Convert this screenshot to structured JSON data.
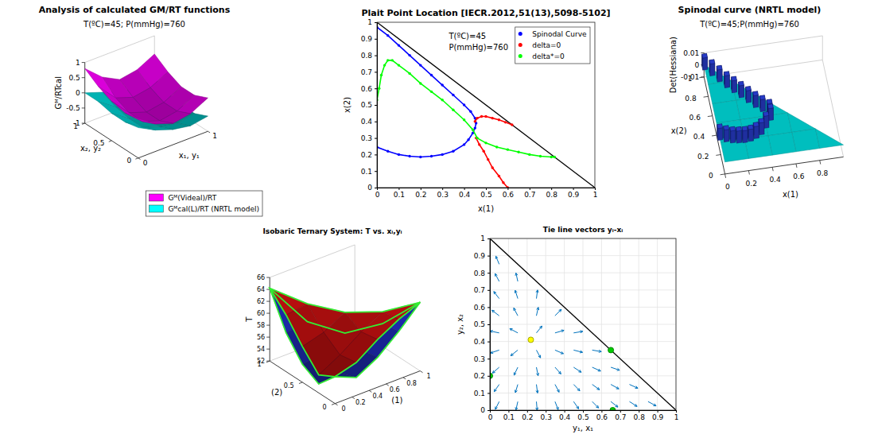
{
  "chart_data": [
    {
      "type": "surface3d",
      "title": "Analysis of calculated GM/RT functions",
      "annotations": [
        "T(ºC)=45; P(mmHg)=760"
      ],
      "x_label": "x₁, y₁",
      "y_label": "x₂, y₂",
      "z_label": "Gᴹ/RTcal",
      "x": [
        0,
        0.25,
        0.5,
        0.75,
        1
      ],
      "y": [
        0,
        0.25,
        0.5,
        0.75,
        1
      ],
      "xlim": [
        0,
        1
      ],
      "ylim": [
        0,
        1
      ],
      "zlim": [
        -1,
        1
      ],
      "xticks": [
        0,
        1
      ],
      "yticks": [
        0,
        0.5,
        1
      ],
      "zticks": [
        -1,
        -0.5,
        0,
        0.5,
        1
      ],
      "legend": "lower right",
      "series": [
        {
          "name": "Gᴹ(Videal)/RT",
          "color": "#ff00ff",
          "z": [
            [
              0.3,
              -0.1,
              -0.3,
              -0.2,
              0.1
            ],
            [
              0.2,
              -0.3,
              -0.5,
              -0.4,
              -0.1
            ],
            [
              0.3,
              -0.3,
              -0.5,
              -0.4,
              -0.1
            ],
            [
              0.5,
              -0.1,
              -0.3,
              -0.2,
              0.1
            ],
            [
              0.8,
              0.3,
              0.0,
              0.1,
              0.4
            ]
          ]
        },
        {
          "name": "Gᴹcal(L)/RT (NRTL model)",
          "color": "#00ffff",
          "z": [
            [
              0.0,
              -0.3,
              -0.5,
              -0.6,
              -0.5
            ],
            [
              -0.1,
              -0.5,
              -0.7,
              -0.8,
              -0.7
            ],
            [
              -0.1,
              -0.5,
              -0.7,
              -0.8,
              -0.7
            ],
            [
              0.0,
              -0.4,
              -0.6,
              -0.7,
              -0.6
            ],
            [
              0.0,
              -0.2,
              -0.4,
              -0.5,
              -0.4
            ]
          ]
        }
      ]
    },
    {
      "type": "scatter",
      "title": "Plait Point Location [IECR.2012,51(13),5098-5102]",
      "annotations": [
        "T(ºC)=45",
        "P(mmHg)=760"
      ],
      "x_label": "x(1)",
      "y_label": "x(2)",
      "xlim": [
        0,
        1
      ],
      "ylim": [
        0,
        1
      ],
      "xticks": [
        0,
        0.1,
        0.2,
        0.3,
        0.4,
        0.5,
        0.6,
        0.7,
        0.8,
        0.9,
        1
      ],
      "yticks": [
        0,
        0.1,
        0.2,
        0.3,
        0.4,
        0.5,
        0.6,
        0.7,
        0.8,
        0.9,
        1
      ],
      "legend": "upper right",
      "marker": "point",
      "line_style": "solid",
      "boundary": {
        "x": [
          0,
          1
        ],
        "y": [
          1,
          0
        ],
        "color": "#000000",
        "line_style": "solid"
      },
      "series": [
        {
          "name": "Spinodal Curve",
          "color": "#0000ff",
          "x": [
            0,
            0.05,
            0.1,
            0.15,
            0.2,
            0.25,
            0.3,
            0.35,
            0.4,
            0.43,
            0.45,
            0.455,
            0.45,
            0.44,
            0.42,
            0.4,
            0.35,
            0.3,
            0.25,
            0.2,
            0.15,
            0.1,
            0.05,
            0
          ],
          "y": [
            0.97,
            0.92,
            0.86,
            0.8,
            0.74,
            0.68,
            0.62,
            0.56,
            0.5,
            0.46,
            0.42,
            0.39,
            0.36,
            0.33,
            0.29,
            0.26,
            0.22,
            0.2,
            0.19,
            0.185,
            0.19,
            0.2,
            0.22,
            0.245
          ]
        },
        {
          "name": "delta=0",
          "color": "#ff0000",
          "x": [
            0.45,
            0.46,
            0.48,
            0.5,
            0.53,
            0.56,
            0.59,
            0.62,
            null,
            0.455,
            0.47,
            0.49,
            0.51,
            0.53,
            0.56,
            0.58,
            0.6
          ],
          "y": [
            0.4,
            0.42,
            0.43,
            0.43,
            0.42,
            0.41,
            0.395,
            0.38,
            null,
            0.3,
            0.26,
            0.22,
            0.17,
            0.12,
            0.07,
            0.03,
            0
          ]
        },
        {
          "name": "delta*=0",
          "color": "#00ff00",
          "x": [
            0,
            0.01,
            0.02,
            0.035,
            0.05,
            0.07,
            0.1,
            0.15,
            0.2,
            0.25,
            0.3,
            0.35,
            0.4,
            0.44,
            0.46,
            0.5,
            0.55,
            0.6,
            0.65,
            0.7,
            0.75,
            0.8,
            0.815
          ],
          "y": [
            0.53,
            0.6,
            0.68,
            0.74,
            0.77,
            0.77,
            0.74,
            0.69,
            0.63,
            0.58,
            0.53,
            0.47,
            0.41,
            0.35,
            0.3,
            0.27,
            0.245,
            0.23,
            0.215,
            0.2,
            0.19,
            0.185,
            0.185
          ]
        }
      ]
    },
    {
      "type": "bar3d",
      "title": "Spinodal curve (NRTL model)",
      "annotations": [
        "T(ºC)=45;P(mmHg)=760"
      ],
      "x_label": "x(1)",
      "y_label": "x(2)",
      "z_label": "Det(Hessiana)",
      "xlim": [
        0,
        1
      ],
      "ylim": [
        0,
        1
      ],
      "zlim": [
        -0.01,
        0.01
      ],
      "xticks": [
        0,
        0.2,
        0.4,
        0.6,
        0.8
      ],
      "yticks": [
        0,
        0.2,
        0.4,
        0.6,
        0.8,
        1
      ],
      "zticks": [
        -0.01,
        0,
        0.01
      ],
      "series": [
        {
          "type": "surface",
          "color": "#00ffff",
          "x": [
            0,
            0.2,
            0.4,
            0.6,
            0.8,
            1
          ],
          "y": [
            0,
            0.2,
            0.4,
            0.6,
            0.8,
            1
          ],
          "z": [
            [
              0,
              0,
              0,
              0,
              0,
              0
            ],
            [
              0,
              0,
              0,
              0,
              0,
              null
            ],
            [
              0,
              0,
              0,
              0,
              null,
              null
            ],
            [
              0,
              0,
              0,
              null,
              null,
              null
            ],
            [
              0,
              0,
              null,
              null,
              null,
              null
            ],
            [
              0,
              null,
              null,
              null,
              null,
              null
            ]
          ]
        },
        {
          "type": "bar",
          "color": "#1f2f9f",
          "x": [
            0,
            0.05,
            0.1,
            0.15,
            0.2,
            0.25,
            0.3,
            0.35,
            0.4,
            0.45,
            0.45,
            0.4,
            0.35,
            0.3,
            0.25,
            0.2,
            0.15,
            0.1,
            0.05,
            0
          ],
          "y": [
            0.97,
            0.9,
            0.83,
            0.76,
            0.7,
            0.64,
            0.58,
            0.52,
            0.47,
            0.42,
            0.37,
            0.3,
            0.24,
            0.21,
            0.19,
            0.185,
            0.19,
            0.2,
            0.22,
            0.245
          ],
          "values": [
            0.01,
            0.01,
            0.01,
            0.01,
            0.01,
            0.01,
            0.01,
            0.01,
            0.01,
            0.01,
            0.01,
            0.01,
            0.01,
            0.01,
            0.01,
            0.01,
            0.01,
            0.01,
            0.01,
            0.01
          ]
        }
      ]
    },
    {
      "type": "surface3d",
      "title": "Isobaric Ternary System: T vs. xᵢ,yᵢ",
      "x_label": "(1)",
      "y_label": "(2)",
      "z_label": "T",
      "x": [
        0,
        0.25,
        0.5,
        0.75,
        1
      ],
      "y": [
        0,
        0.25,
        0.5,
        0.75,
        1
      ],
      "xlim": [
        0,
        1
      ],
      "ylim": [
        0,
        1
      ],
      "zlim": [
        52,
        66
      ],
      "xticks": [
        0,
        0.2,
        0.4,
        0.6,
        0.8,
        1
      ],
      "yticks": [
        0,
        0.5,
        1
      ],
      "zticks": [
        52,
        54,
        56,
        58,
        60,
        62,
        64,
        66
      ],
      "series": [
        {
          "color": "#cc1111",
          "z": [
            [
              56.5,
              57.5,
              60,
              62,
              63.5
            ],
            [
              55,
              57,
              59.5,
              61.5,
              null
            ],
            [
              58,
              59,
              61,
              null,
              null
            ],
            [
              61.5,
              62,
              null,
              null,
              null
            ],
            [
              64.2,
              null,
              null,
              null,
              null
            ]
          ]
        },
        {
          "color": "#2233cc",
          "z": [
            [
              56.5,
              55,
              57,
              60,
              63.5
            ],
            [
              53.5,
              54,
              56.5,
              59.5,
              null
            ],
            [
              55,
              55.5,
              57.5,
              null,
              null
            ],
            [
              58.5,
              59,
              null,
              null,
              null
            ],
            [
              64.2,
              null,
              null,
              null,
              null
            ]
          ]
        },
        {
          "type": "line",
          "color": "#33ee33",
          "x": [
            0,
            0.25,
            0.5,
            0.75,
            1,
            0.75,
            0.5,
            0.25,
            0,
            0,
            0,
            0,
            0
          ],
          "y": [
            0,
            0,
            0,
            0,
            0,
            0.25,
            0.5,
            0.75,
            1,
            0.75,
            0.5,
            0.25,
            0
          ],
          "z": [
            56.5,
            55,
            57,
            60,
            63.5,
            59.5,
            57.5,
            59,
            64.2,
            58.5,
            55,
            53.5,
            56.5
          ]
        },
        {
          "type": "line",
          "color": "#33ee33",
          "x": [
            0,
            0.25,
            0.5,
            0.75,
            1,
            0.75,
            0.5,
            0.25,
            0,
            0,
            0,
            0,
            0
          ],
          "y": [
            0,
            0,
            0,
            0,
            0,
            0.25,
            0.5,
            0.75,
            1,
            0.75,
            0.5,
            0.25,
            0
          ],
          "z": [
            56.5,
            57.5,
            60,
            62,
            63.5,
            61.5,
            61,
            62,
            64.2,
            61.5,
            58,
            55,
            56.5
          ]
        }
      ]
    },
    {
      "type": "quiver",
      "title": "Tie line vectors yᵢ-xᵢ",
      "x_label": "y₁, x₁",
      "y_label": "y₂, x₂",
      "xlim": [
        0,
        1
      ],
      "ylim": [
        0,
        1
      ],
      "xticks": [
        0,
        0.1,
        0.2,
        0.3,
        0.4,
        0.5,
        0.6,
        0.7,
        0.8,
        0.9,
        1
      ],
      "yticks": [
        0,
        0.1,
        0.2,
        0.3,
        0.4,
        0.5,
        0.6,
        0.7,
        0.8,
        0.9,
        1
      ],
      "grid": true,
      "color": "#0072bd",
      "boundary": {
        "x": [
          0,
          1
        ],
        "y": [
          1,
          0
        ],
        "color": "#000000",
        "line_style": "solid"
      },
      "x": [
        0.05,
        0.05,
        0.05,
        0.05,
        0.05,
        0.05,
        0.05,
        0.05,
        0.05,
        0.15,
        0.15,
        0.15,
        0.15,
        0.15,
        0.15,
        0.15,
        0.15,
        0.25,
        0.25,
        0.25,
        0.25,
        0.25,
        0.25,
        0.25,
        0.35,
        0.35,
        0.35,
        0.35,
        0.35,
        0.35,
        0.45,
        0.45,
        0.45,
        0.45,
        0.45,
        0.55,
        0.55,
        0.55,
        0.55,
        0.65,
        0.65,
        0.65,
        0.75,
        0.75,
        0.85
      ],
      "y": [
        0.05,
        0.15,
        0.25,
        0.35,
        0.45,
        0.55,
        0.65,
        0.75,
        0.85,
        0.05,
        0.15,
        0.25,
        0.35,
        0.45,
        0.55,
        0.65,
        0.75,
        0.05,
        0.15,
        0.25,
        0.35,
        0.45,
        0.55,
        0.65,
        0.05,
        0.15,
        0.25,
        0.35,
        0.45,
        0.55,
        0.05,
        0.15,
        0.25,
        0.35,
        0.45,
        0.05,
        0.15,
        0.25,
        0.35,
        0.05,
        0.15,
        0.25,
        0.05,
        0.15,
        0.05
      ],
      "u": [
        -0.021,
        -0.027,
        -0.036,
        -0.047,
        -0.049,
        -0.039,
        -0.029,
        -0.022,
        -0.018,
        -0.01,
        -0.013,
        -0.02,
        -0.038,
        -0.043,
        -0.022,
        -0.014,
        -0.01,
        0.004,
        0.006,
        0.009,
        0.022,
        0.03,
        0.01,
        0.006,
        0.017,
        0.022,
        0.032,
        0.045,
        0.048,
        0.034,
        0.027,
        0.033,
        0.041,
        0.048,
        0.049,
        0.034,
        0.039,
        0.045,
        0.049,
        0.038,
        0.043,
        0.047,
        0.041,
        0.045,
        0.043
      ],
      "v": [
        -0.045,
        -0.042,
        -0.034,
        -0.017,
        0.011,
        0.032,
        0.041,
        0.045,
        0.047,
        -0.049,
        -0.048,
        -0.046,
        -0.033,
        0.025,
        0.045,
        0.048,
        0.049,
        -0.05,
        -0.05,
        -0.049,
        -0.045,
        0.04,
        0.049,
        0.05,
        -0.047,
        -0.045,
        -0.039,
        -0.021,
        0.015,
        0.037,
        -0.042,
        -0.037,
        -0.029,
        -0.013,
        0.009,
        -0.037,
        -0.031,
        -0.022,
        -0.009,
        -0.032,
        -0.026,
        -0.017,
        -0.028,
        -0.022,
        -0.025
      ],
      "points": {
        "x": [
          0,
          0.66,
          0.65,
          0.22
        ],
        "y": [
          0.2,
          0,
          0.35,
          0.41
        ],
        "colors": [
          "#00cc00",
          "#00cc00",
          "#00cc00",
          "#ffff00"
        ],
        "marker": "circle"
      }
    }
  ]
}
